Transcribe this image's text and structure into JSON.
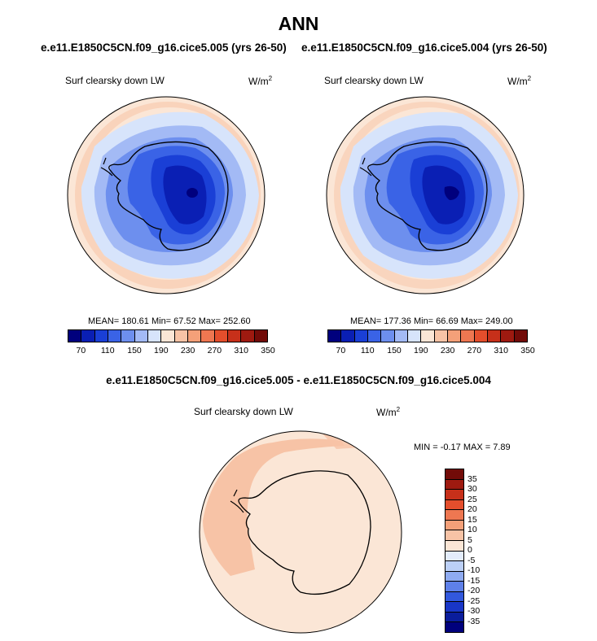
{
  "main_title": "ANN",
  "panels": [
    {
      "title": "e.e11.E1850C5CN.f09_g16.cice5.005 (yrs 26-50)",
      "variable": "Surf clearsky down LW",
      "units": "W/m",
      "units_exp": "2",
      "stats": "MEAN= 180.61  Min=  67.52  Max= 252.60"
    },
    {
      "title": "e.e11.E1850C5CN.f09_g16.cice5.004 (yrs 26-50)",
      "variable": "Surf clearsky down LW",
      "units": "W/m",
      "units_exp": "2",
      "stats": "MEAN= 177.36  Min=  66.69  Max= 249.00"
    }
  ],
  "diff_panel": {
    "title": "e.e11.E1850C5CN.f09_g16.cice5.005 - e.e11.E1850C5CN.f09_g16.cice5.004",
    "variable": "Surf clearsky down LW",
    "units": "W/m",
    "units_exp": "2",
    "stats": "MIN =  -0.17 MAX =   7.89"
  },
  "colorbar_top": {
    "colors": [
      "#00007d",
      "#0a1fb4",
      "#1a3fd6",
      "#3a63e6",
      "#6d8fee",
      "#a3baf5",
      "#d7e4fb",
      "#fbe6d6",
      "#f7c3a6",
      "#f4a079",
      "#ee7751",
      "#e44e2c",
      "#c7301a",
      "#9e1a10",
      "#720b08"
    ],
    "labels": [
      "70",
      "110",
      "150",
      "190",
      "230",
      "270",
      "310",
      "350"
    ]
  },
  "colorbar_diff": {
    "colors": [
      "#720b08",
      "#9e1a10",
      "#c7301a",
      "#e44e2c",
      "#ee7751",
      "#f4a079",
      "#f7c3a6",
      "#fbe6d6",
      "#e3ecfb",
      "#bcd0f7",
      "#8fabf1",
      "#5e80e9",
      "#3258dd",
      "#1936c7",
      "#0a1d9c",
      "#00007d"
    ],
    "labels": [
      "35",
      "30",
      "25",
      "20",
      "15",
      "10",
      "5",
      "0",
      "-5",
      "-10",
      "-15",
      "-20",
      "-25",
      "-30",
      "-35"
    ]
  }
}
